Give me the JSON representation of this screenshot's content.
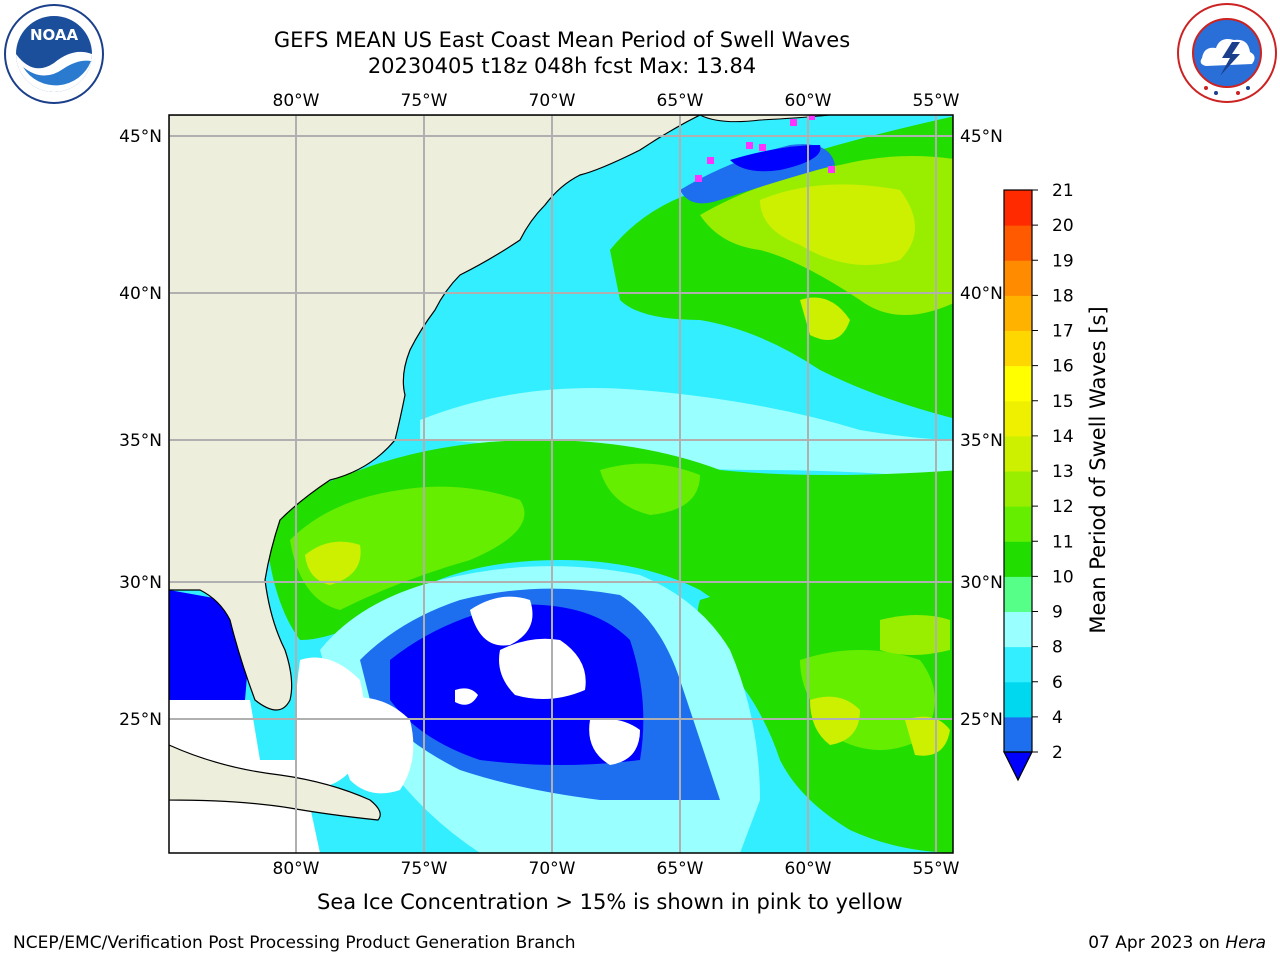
{
  "header": {
    "title_line1": "GEFS MEAN US East Coast Mean Period of Swell Waves",
    "title_line2": "20230405 t18z 048h fcst   Max: 13.84"
  },
  "logos": {
    "left": {
      "name": "NOAA",
      "text": "NOAA",
      "ring_text": "NATIONAL OCEANIC AND ATMOSPHERIC ADMINISTRATION · U.S. DEPARTMENT OF COMMERCE"
    },
    "right": {
      "name": "National Weather Service",
      "ring_text": "NATIONAL WEATHER SERVICE"
    }
  },
  "map": {
    "lon_labels": [
      "80°W",
      "75°W",
      "70°W",
      "65°W",
      "60°W",
      "55°W"
    ],
    "lat_labels": [
      "45°N",
      "40°N",
      "35°N",
      "30°N",
      "25°N"
    ],
    "colors": {
      "land": "#eeeedd",
      "grid": "#b0b0b0",
      "ice": "#ff33ff"
    }
  },
  "colorbar": {
    "title": "Mean Period of Swell Waves [s]",
    "ticks": [
      "2",
      "4",
      "6",
      "8",
      "9",
      "10",
      "11",
      "12",
      "13",
      "14",
      "15",
      "16",
      "17",
      "18",
      "19",
      "20",
      "21"
    ],
    "colors": [
      "#1e6ef0",
      "#00d8f0",
      "#33eeff",
      "#99ffff",
      "#55ff88",
      "#22dd00",
      "#66ee00",
      "#99ee00",
      "#ccf000",
      "#eef000",
      "#ffff00",
      "#ffd700",
      "#ffb300",
      "#ff8c00",
      "#ff5a00",
      "#ff2a00",
      "#ff0000"
    ],
    "under_color": "#0000ff"
  },
  "captions": {
    "ice_note": "Sea Ice Concentration > 15% is shown in pink to yellow",
    "footer_left": "NCEP/EMC/Verification Post Processing Product Generation Branch",
    "footer_date": "07 Apr 2023 on ",
    "footer_host": "Hera"
  }
}
